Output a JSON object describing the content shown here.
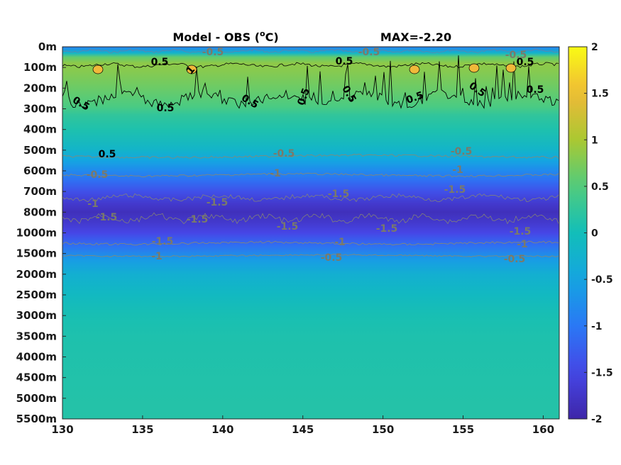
{
  "chart_data": {
    "type": "heatmap",
    "title": "Model - OBS (",
    "title_unit_super": "o",
    "title_unit_tail": "C)",
    "max_label": "MAX=-2.20",
    "xlabel": "",
    "ylabel": "",
    "x_ticks": [
      "130",
      "135",
      "140",
      "145",
      "150",
      "155",
      "160"
    ],
    "x_tick_values": [
      130,
      135,
      140,
      145,
      150,
      155,
      160
    ],
    "xlim": [
      130,
      161
    ],
    "y_ticks": [
      "0m",
      "100m",
      "200m",
      "300m",
      "400m",
      "500m",
      "600m",
      "700m",
      "800m",
      "1000m",
      "1500m",
      "2000m",
      "2500m",
      "3000m",
      "3500m",
      "4000m",
      "4500m",
      "5000m",
      "5500m"
    ],
    "colorbar": {
      "range": [
        -2,
        2
      ],
      "ticks": [
        "2",
        "1.5",
        "1",
        "0.5",
        "0",
        "-0.5",
        "-1",
        "-1.5",
        "-2"
      ],
      "tick_values": [
        2,
        1.5,
        1,
        0.5,
        0,
        -0.5,
        -1,
        -1.5,
        -2
      ],
      "colormap": "parula"
    },
    "profile": {
      "depth_index": [
        0,
        0.3,
        0.5,
        0.8,
        1.2,
        2.0,
        2.9,
        3.3,
        4,
        5,
        5.5,
        6,
        6.5,
        7,
        7.6,
        8,
        8.5,
        9,
        9.6,
        10.3,
        11,
        12,
        13,
        14,
        18
      ],
      "values": [
        -0.9,
        -0.2,
        0.6,
        0.85,
        0.8,
        0.65,
        0.45,
        0.25,
        0.1,
        -0.2,
        -0.5,
        -0.8,
        -1.1,
        -1.4,
        -1.7,
        -1.85,
        -1.7,
        -1.5,
        -1.1,
        -0.6,
        -0.3,
        -0.1,
        0.05,
        0.1,
        0.15
      ]
    },
    "contour_labels": [
      {
        "text": "-0.5",
        "color": "gray"
      },
      {
        "text": "-0.5",
        "color": "gray"
      },
      {
        "text": "-0.5",
        "color": "gray"
      },
      {
        "text": "0.5",
        "color": "black"
      },
      {
        "text": "0.5",
        "color": "black"
      },
      {
        "text": "0.5",
        "color": "black"
      },
      {
        "text": "1",
        "color": "black"
      },
      {
        "text": "0.5",
        "color": "black"
      },
      {
        "text": "0.5",
        "color": "black"
      },
      {
        "text": "0.5",
        "color": "black"
      },
      {
        "text": "0.5",
        "color": "black"
      },
      {
        "text": "0.5",
        "color": "black"
      },
      {
        "text": "0.5",
        "color": "black"
      },
      {
        "text": "0.5",
        "color": "black"
      },
      {
        "text": "0.5",
        "color": "black"
      },
      {
        "text": "0.5",
        "color": "black"
      },
      {
        "text": "-0.5",
        "color": "gray"
      },
      {
        "text": "-0.5",
        "color": "gray"
      },
      {
        "text": "-0.5",
        "color": "gray"
      },
      {
        "text": "-1",
        "color": "gray"
      },
      {
        "text": "-1",
        "color": "gray"
      },
      {
        "text": "-1",
        "color": "gray"
      },
      {
        "text": "-1.5",
        "color": "gray"
      },
      {
        "text": "-1.5",
        "color": "gray"
      },
      {
        "text": "-1.5",
        "color": "gray"
      },
      {
        "text": "-1.5",
        "color": "gray"
      },
      {
        "text": "-1.5",
        "color": "gray"
      },
      {
        "text": "-1.5",
        "color": "gray"
      },
      {
        "text": "-1.5",
        "color": "gray"
      },
      {
        "text": "-1.5",
        "color": "gray"
      },
      {
        "text": "-1.5",
        "color": "gray"
      },
      {
        "text": "-1",
        "color": "gray"
      },
      {
        "text": "-1",
        "color": "gray"
      },
      {
        "text": "-1",
        "color": "gray"
      },
      {
        "text": "-0.5",
        "color": "gray"
      },
      {
        "text": "-0.5",
        "color": "gray"
      },
      {
        "text": "-0.5",
        "color": "gray"
      }
    ]
  }
}
